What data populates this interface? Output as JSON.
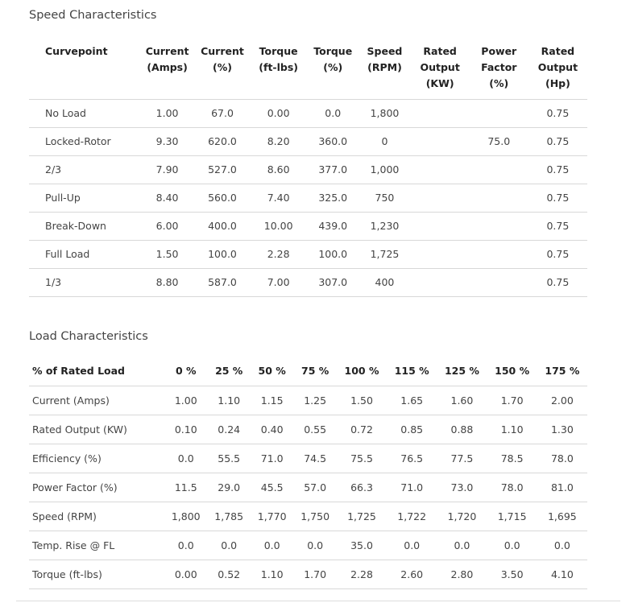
{
  "speed": {
    "title": "Speed Characteristics",
    "headers": [
      "Curvepoint",
      "Current (Amps)",
      "Current (%)",
      "Torque (ft-lbs)",
      "Torque (%)",
      "Speed (RPM)",
      "Rated Output (KW)",
      "Power Factor (%)",
      "Rated Output (Hp)"
    ],
    "rows": [
      [
        "No Load",
        "1.00",
        "67.0",
        "0.00",
        "0.0",
        "1,800",
        "",
        "",
        "0.75"
      ],
      [
        "Locked-Rotor",
        "9.30",
        "620.0",
        "8.20",
        "360.0",
        "0",
        "",
        "75.0",
        "0.75"
      ],
      [
        "2/3",
        "7.90",
        "527.0",
        "8.60",
        "377.0",
        "1,000",
        "",
        "",
        "0.75"
      ],
      [
        "Pull-Up",
        "8.40",
        "560.0",
        "7.40",
        "325.0",
        "750",
        "",
        "",
        "0.75"
      ],
      [
        "Break-Down",
        "6.00",
        "400.0",
        "10.00",
        "439.0",
        "1,230",
        "",
        "",
        "0.75"
      ],
      [
        "Full Load",
        "1.50",
        "100.0",
        "2.28",
        "100.0",
        "1,725",
        "",
        "",
        "0.75"
      ],
      [
        "1/3",
        "8.80",
        "587.0",
        "7.00",
        "307.0",
        "400",
        "",
        "",
        "0.75"
      ]
    ]
  },
  "load": {
    "title": "Load Characteristics",
    "headers": [
      "% of Rated Load",
      "0 %",
      "25 %",
      "50 %",
      "75 %",
      "100 %",
      "115 %",
      "125 %",
      "150 %",
      "175 %"
    ],
    "rows": [
      [
        "Current (Amps)",
        "1.00",
        "1.10",
        "1.15",
        "1.25",
        "1.50",
        "1.65",
        "1.60",
        "1.70",
        "2.00"
      ],
      [
        "Rated Output (KW)",
        "0.10",
        "0.24",
        "0.40",
        "0.55",
        "0.72",
        "0.85",
        "0.88",
        "1.10",
        "1.30"
      ],
      [
        "Efficiency (%)",
        "0.0",
        "55.5",
        "71.0",
        "74.5",
        "75.5",
        "76.5",
        "77.5",
        "78.5",
        "78.0"
      ],
      [
        "Power Factor (%)",
        "11.5",
        "29.0",
        "45.5",
        "57.0",
        "66.3",
        "71.0",
        "73.0",
        "78.0",
        "81.0"
      ],
      [
        "Speed (RPM)",
        "1,800",
        "1,785",
        "1,770",
        "1,750",
        "1,725",
        "1,722",
        "1,720",
        "1,715",
        "1,695"
      ],
      [
        "Temp. Rise @ FL",
        "0.0",
        "0.0",
        "0.0",
        "0.0",
        "35.0",
        "0.0",
        "0.0",
        "0.0",
        "0.0"
      ],
      [
        "Torque (ft-lbs)",
        "0.00",
        "0.52",
        "1.10",
        "1.70",
        "2.28",
        "2.60",
        "2.80",
        "3.50",
        "4.10"
      ]
    ]
  }
}
